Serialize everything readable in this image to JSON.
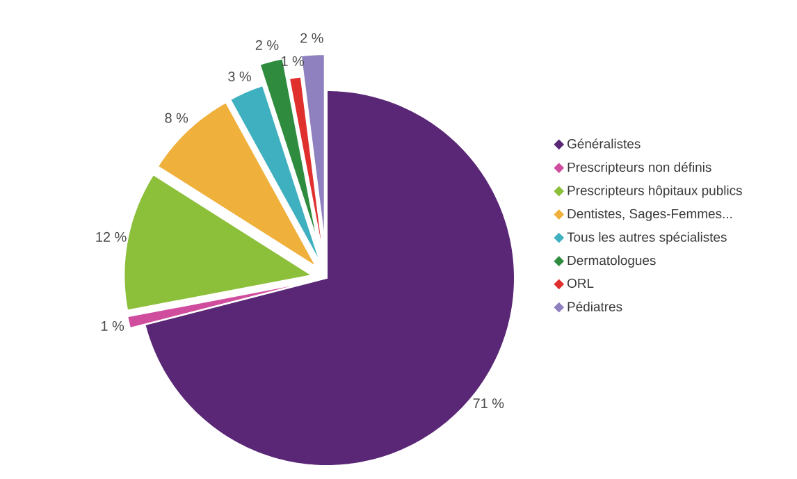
{
  "chart_data": {
    "type": "pie",
    "categories": [
      "Généralistes",
      "Prescripteurs non définis",
      "Prescripteurs hôpitaux publics",
      "Dentistes, Sages-Femmes...",
      "Tous les autres spécialistes",
      "Dermatologues",
      "ORL",
      "Pédiatres"
    ],
    "values": [
      71,
      1,
      12,
      8,
      3,
      2,
      1,
      2
    ],
    "value_labels": [
      "71 %",
      "1 %",
      "12 %",
      "8 %",
      "3 %",
      "2 %",
      "1 %",
      "2 %"
    ],
    "colors": [
      "#5a2776",
      "#d04d9e",
      "#8cbf3a",
      "#f0b03c",
      "#3fb0bf",
      "#2f8c3f",
      "#e0302e",
      "#8f80c0"
    ],
    "legend": "right"
  }
}
